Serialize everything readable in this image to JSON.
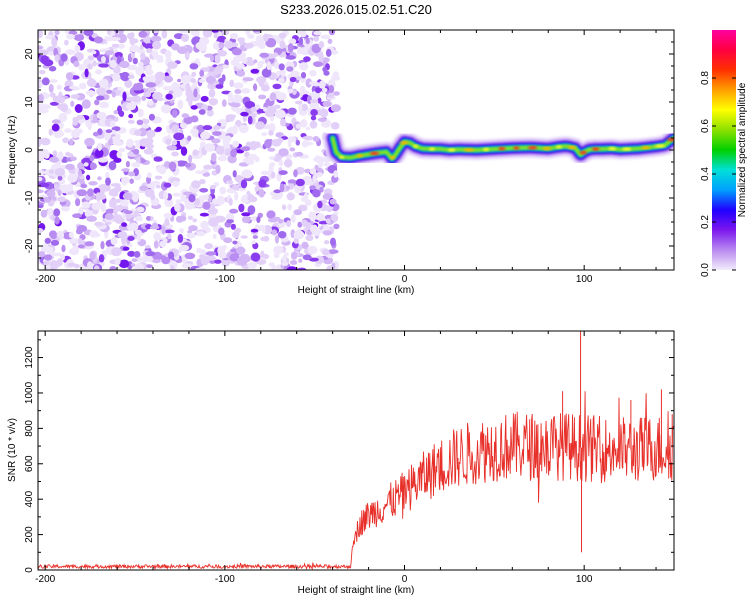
{
  "title": "S233.2026.015.02.51.C20",
  "chart_data": [
    {
      "type": "heatmap",
      "name": "spectrogram",
      "xlabel": "Height of straight line (km)",
      "ylabel": "Frequency (Hz)",
      "xlim": [
        -204,
        150
      ],
      "ylim": [
        -25,
        25
      ],
      "xticks": [
        -200,
        -100,
        0,
        100
      ],
      "yticks": [
        -20,
        -10,
        0,
        10,
        20
      ],
      "noise_region_x": [
        -204,
        -40
      ],
      "signal_trace": {
        "x": [
          -40,
          -38,
          -35,
          -30,
          -25,
          -20,
          -15,
          -10,
          -7,
          -5,
          -3,
          0,
          3,
          6,
          10,
          15,
          20,
          25,
          30,
          40,
          50,
          60,
          70,
          80,
          85,
          90,
          95,
          98,
          100,
          103,
          106,
          110,
          115,
          120,
          125,
          130,
          135,
          140,
          145,
          150
        ],
        "y": [
          2.5,
          -0.5,
          -1.5,
          -1.6,
          -1.2,
          -0.9,
          -0.6,
          -0.4,
          -1.8,
          -1.0,
          0.2,
          1.7,
          1.5,
          0.8,
          0.3,
          0.2,
          0.2,
          0.0,
          0.1,
          0.0,
          0.2,
          0.4,
          0.5,
          0.3,
          0.6,
          0.8,
          0.4,
          -1.0,
          -0.4,
          0.1,
          0.2,
          0.2,
          0.3,
          0.1,
          0.2,
          0.3,
          0.5,
          0.7,
          1.0,
          2.5
        ]
      },
      "colorbar": {
        "label": "Normalized spectral amplitude",
        "range": [
          0,
          1
        ],
        "ticks": [
          "0.0",
          "0.2",
          "0.4",
          "0.6",
          "0.8"
        ],
        "tick_values": [
          0,
          0.2,
          0.4,
          0.6,
          0.8
        ],
        "colors": [
          "#f2ecfb",
          "#b98af0",
          "#7b16ee",
          "#2000ff",
          "#00a0ff",
          "#00e0d8",
          "#00d000",
          "#8ce000",
          "#ffff00",
          "#ffa000",
          "#ff3000",
          "#ff0040",
          "#ff00a0"
        ]
      }
    },
    {
      "type": "line",
      "name": "snr",
      "xlabel": "Height of straight line (km)",
      "ylabel": "SNR (10 * v/v)",
      "xlim": [
        -204,
        150
      ],
      "ylim": [
        0,
        1350
      ],
      "xticks": [
        -200,
        -100,
        0,
        100
      ],
      "yticks": [
        0,
        200,
        400,
        600,
        800,
        1000,
        1200
      ],
      "color": "#e8302a",
      "envelope": {
        "x": [
          -204,
          -40,
          -30,
          -28,
          -25,
          -20,
          -10,
          0,
          10,
          20,
          30,
          40,
          50,
          60,
          70,
          80,
          90,
          100,
          110,
          120,
          130,
          140,
          150
        ],
        "y": [
          20,
          20,
          20,
          170,
          260,
          310,
          370,
          440,
          520,
          590,
          640,
          670,
          690,
          700,
          700,
          700,
          700,
          690,
          680,
          680,
          680,
          690,
          690
        ]
      },
      "spikes": [
        {
          "x": 98,
          "y": 1350
        },
        {
          "x": 98.5,
          "y": 100
        },
        {
          "x": 143,
          "y": 1020
        },
        {
          "x": 149,
          "y": 880
        },
        {
          "x": 88,
          "y": 1010
        },
        {
          "x": 126,
          "y": 960
        }
      ]
    }
  ]
}
